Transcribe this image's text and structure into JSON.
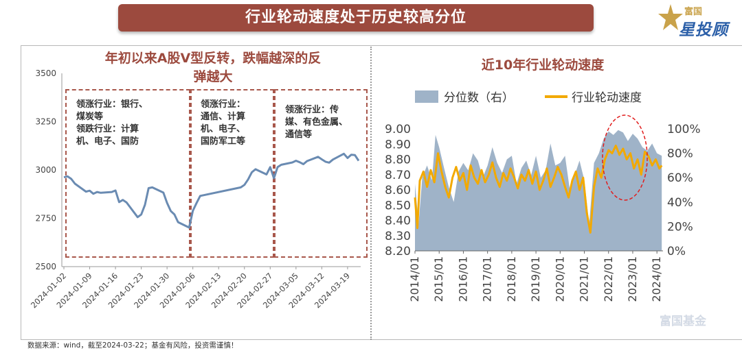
{
  "header": {
    "title": "行业轮动速度处于历史较高分位"
  },
  "brand": {
    "top": "富国",
    "main": "星投顾",
    "watermark": "富国基金"
  },
  "source_note": "数据来源：wind，截至2024-03-22；基金有风险，投资需谨慎！",
  "colors": {
    "title_bg": "#9c4a3e",
    "index_line": "#6a8bb2",
    "speed_line": "#f2a900",
    "percentile_area": "#9fb3c8",
    "highlight_ellipse": "#e11d1d"
  },
  "chart_data": [
    {
      "type": "line",
      "title": "年初以来A股V型反转，跌幅越深的反弹越大",
      "title_lines": [
        "年初以来A股V型反转，跌幅越深的反",
        "弹越大"
      ],
      "xlabel": "",
      "ylabel": "",
      "ylim": [
        2500,
        3500
      ],
      "yticks": [
        "2500",
        "2750",
        "3000",
        "3250",
        "3500"
      ],
      "xticks": [
        "2024-01-02",
        "2024-01-09",
        "2024-01-16",
        "2024-01-23",
        "2024-01-30",
        "2024-02-06",
        "2024-02-13",
        "2024-02-20",
        "2024-02-27",
        "2024-03-05",
        "2024-03-12",
        "2024-03-19"
      ],
      "x_range": [
        "2024-01-02",
        "2024-03-22"
      ],
      "grid": false,
      "series": [
        {
          "x": [
            "2024-01-02",
            "2024-01-03",
            "2024-01-04",
            "2024-01-05",
            "2024-01-08",
            "2024-01-09",
            "2024-01-10",
            "2024-01-11",
            "2024-01-12",
            "2024-01-15",
            "2024-01-16",
            "2024-01-17",
            "2024-01-18",
            "2024-01-19",
            "2024-01-22",
            "2024-01-23",
            "2024-01-24",
            "2024-01-25",
            "2024-01-26",
            "2024-01-29",
            "2024-01-30",
            "2024-01-31",
            "2024-02-01",
            "2024-02-02",
            "2024-02-05",
            "2024-02-06",
            "2024-02-07",
            "2024-02-08",
            "2024-02-19",
            "2024-02-20",
            "2024-02-21",
            "2024-02-22",
            "2024-02-23",
            "2024-02-26",
            "2024-02-27",
            "2024-02-28",
            "2024-02-29",
            "2024-03-01",
            "2024-03-04",
            "2024-03-05",
            "2024-03-06",
            "2024-03-07",
            "2024-03-08",
            "2024-03-11",
            "2024-03-12",
            "2024-03-13",
            "2024-03-14",
            "2024-03-15",
            "2024-03-18",
            "2024-03-19",
            "2024-03-20",
            "2024-03-21",
            "2024-03-22"
          ],
          "values": [
            2962,
            2967,
            2954,
            2929,
            2888,
            2893,
            2877,
            2886,
            2882,
            2886,
            2894,
            2834,
            2845,
            2832,
            2756,
            2770,
            2820,
            2906,
            2910,
            2883,
            2830,
            2788,
            2770,
            2730,
            2702,
            2789,
            2829,
            2866,
            2910,
            2923,
            2951,
            2988,
            3004,
            2977,
            3015,
            2957,
            3015,
            3027,
            3039,
            3048,
            3040,
            3030,
            3046,
            3068,
            3055,
            3043,
            3038,
            3054,
            3084,
            3062,
            3079,
            3077,
            3048
          ]
        }
      ],
      "annotations": [
        {
          "period": "2024-01-02 ~ 2024-02-05",
          "lines": [
            "领涨行业：银行、",
            "煤炭等",
            "领跌行业：计算",
            "机、电子、国防"
          ]
        },
        {
          "period": "2024-02-06 ~ 2024-02-28",
          "lines": [
            "领涨行业：",
            "通信、计算",
            "机、电子、",
            "国防军工等"
          ]
        },
        {
          "period": "2024-02-29 ~ 2024-03-22",
          "lines": [
            "领涨行业：传",
            "媒、有色金属、",
            "通信等"
          ]
        }
      ]
    },
    {
      "type": "area",
      "title": "近10年行业轮动速度",
      "xlabel": "",
      "ylabel": "",
      "x_range": [
        2014.0,
        2024.25
      ],
      "xticks": [
        "2014/01",
        "2015/01",
        "2016/01",
        "2017/01",
        "2018/01",
        "2019/01",
        "2020/01",
        "2021/01",
        "2022/01",
        "2023/01",
        "2024/01"
      ],
      "ylim_left": [
        8.2,
        9.0
      ],
      "yticks_left": [
        "8.20",
        "8.30",
        "8.40",
        "8.50",
        "8.60",
        "8.70",
        "8.80",
        "8.90",
        "9.00"
      ],
      "ylim_right": [
        0,
        100
      ],
      "yticks_right": [
        "0%",
        "20%",
        "40%",
        "60%",
        "80%",
        "100%"
      ],
      "legend": {
        "position": "top",
        "items": [
          "分位数（右）",
          "行业轮动速度"
        ]
      },
      "grid": false,
      "highlight": {
        "from": 2021.75,
        "to": 2023.6,
        "shape": "ellipse"
      },
      "series": [
        {
          "name": "分位数（右）",
          "axis": "right",
          "type": "area",
          "x": [
            2014.0,
            2014.15,
            2014.3,
            2014.5,
            2014.7,
            2014.85,
            2015.0,
            2015.2,
            2015.4,
            2015.6,
            2015.8,
            2016.0,
            2016.2,
            2016.4,
            2016.6,
            2016.8,
            2017.0,
            2017.2,
            2017.4,
            2017.6,
            2017.8,
            2018.0,
            2018.2,
            2018.4,
            2018.6,
            2018.8,
            2019.0,
            2019.2,
            2019.4,
            2019.6,
            2019.8,
            2020.0,
            2020.2,
            2020.4,
            2020.6,
            2020.8,
            2021.0,
            2021.2,
            2021.4,
            2021.6,
            2021.8,
            2022.0,
            2022.2,
            2022.4,
            2022.6,
            2022.8,
            2023.0,
            2023.2,
            2023.4,
            2023.6,
            2023.8,
            2024.0,
            2024.2
          ],
          "values": [
            55,
            22,
            60,
            70,
            58,
            95,
            85,
            68,
            52,
            40,
            65,
            72,
            66,
            80,
            74,
            60,
            70,
            85,
            72,
            64,
            75,
            78,
            55,
            68,
            74,
            62,
            78,
            60,
            66,
            88,
            70,
            72,
            78,
            50,
            62,
            74,
            58,
            22,
            72,
            80,
            92,
            98,
            95,
            99,
            97,
            90,
            96,
            92,
            85,
            82,
            88,
            80,
            78
          ]
        },
        {
          "name": "行业轮动速度",
          "axis": "left",
          "type": "line",
          "x": [
            2014.0,
            2014.1,
            2014.2,
            2014.35,
            2014.5,
            2014.65,
            2014.8,
            2014.95,
            2015.1,
            2015.25,
            2015.4,
            2015.55,
            2015.7,
            2015.85,
            2016.0,
            2016.15,
            2016.3,
            2016.45,
            2016.6,
            2016.75,
            2016.9,
            2017.05,
            2017.2,
            2017.35,
            2017.5,
            2017.65,
            2017.8,
            2017.95,
            2018.1,
            2018.25,
            2018.4,
            2018.55,
            2018.7,
            2018.85,
            2019.0,
            2019.15,
            2019.3,
            2019.45,
            2019.6,
            2019.75,
            2019.9,
            2020.05,
            2020.2,
            2020.35,
            2020.5,
            2020.65,
            2020.8,
            2020.95,
            2021.1,
            2021.25,
            2021.4,
            2021.55,
            2021.7,
            2021.85,
            2022.0,
            2022.15,
            2022.3,
            2022.45,
            2022.6,
            2022.75,
            2022.9,
            2023.05,
            2023.2,
            2023.35,
            2023.5,
            2023.65,
            2023.8,
            2023.95,
            2024.1,
            2024.2
          ],
          "values": [
            8.55,
            8.35,
            8.66,
            8.72,
            8.62,
            8.73,
            8.65,
            8.84,
            8.72,
            8.62,
            8.55,
            8.68,
            8.75,
            8.66,
            8.71,
            8.6,
            8.76,
            8.68,
            8.64,
            8.73,
            8.65,
            8.7,
            8.78,
            8.68,
            8.62,
            8.71,
            8.66,
            8.74,
            8.68,
            8.61,
            8.7,
            8.66,
            8.73,
            8.64,
            8.72,
            8.6,
            8.66,
            8.74,
            8.62,
            8.68,
            8.75,
            8.7,
            8.62,
            8.55,
            8.66,
            8.72,
            8.6,
            8.68,
            8.45,
            8.32,
            8.62,
            8.74,
            8.68,
            8.8,
            8.86,
            8.84,
            8.89,
            8.83,
            8.87,
            8.8,
            8.84,
            8.74,
            8.8,
            8.7,
            8.85,
            8.82,
            8.76,
            8.8,
            8.74,
            8.76
          ]
        }
      ]
    }
  ]
}
